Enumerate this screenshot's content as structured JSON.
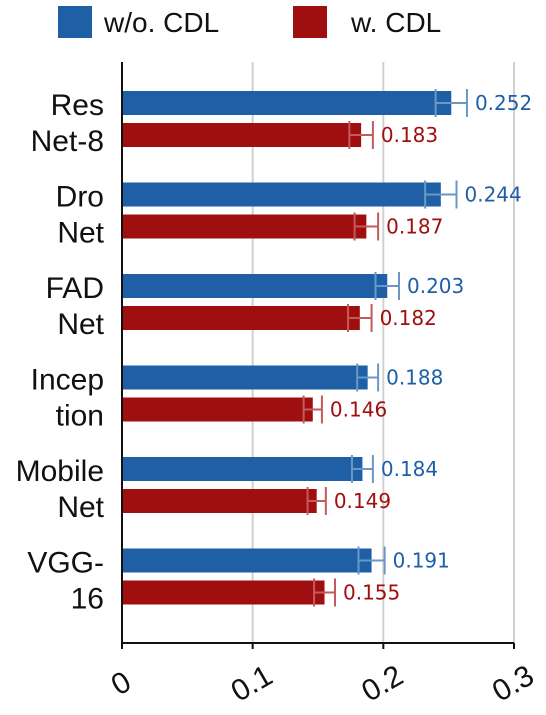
{
  "chart_data": {
    "type": "bar",
    "orientation": "horizontal",
    "categories": [
      [
        "Res",
        "Net-8"
      ],
      [
        "Dro",
        "Net"
      ],
      [
        "FAD",
        "Net"
      ],
      [
        "Incep",
        "tion"
      ],
      [
        "Mobile",
        "Net"
      ],
      [
        "VGG-",
        "16"
      ]
    ],
    "series": [
      {
        "name": "w/o. CDL",
        "color": "#1f5fa6",
        "values": [
          0.252,
          0.244,
          0.203,
          0.188,
          0.184,
          0.191
        ],
        "errors": [
          0.012,
          0.012,
          0.009,
          0.008,
          0.008,
          0.01
        ],
        "value_labels": [
          "0.252",
          "0.244",
          "0.203",
          "0.188",
          "0.184",
          "0.191"
        ]
      },
      {
        "name": "w. CDL",
        "color": "#a00f0f",
        "values": [
          0.183,
          0.187,
          0.182,
          0.146,
          0.149,
          0.155
        ],
        "errors": [
          0.009,
          0.009,
          0.009,
          0.007,
          0.007,
          0.008
        ],
        "value_labels": [
          "0.183",
          "0.187",
          "0.182",
          "0.146",
          "0.149",
          "0.155"
        ]
      }
    ],
    "xlim": [
      0,
      0.3
    ],
    "xticks": [
      0,
      0.1,
      0.2,
      0.3
    ],
    "xtick_labels": [
      "0",
      "0.1",
      "0.2",
      "0.3"
    ],
    "grid": "vertical",
    "legend_position": "top"
  }
}
